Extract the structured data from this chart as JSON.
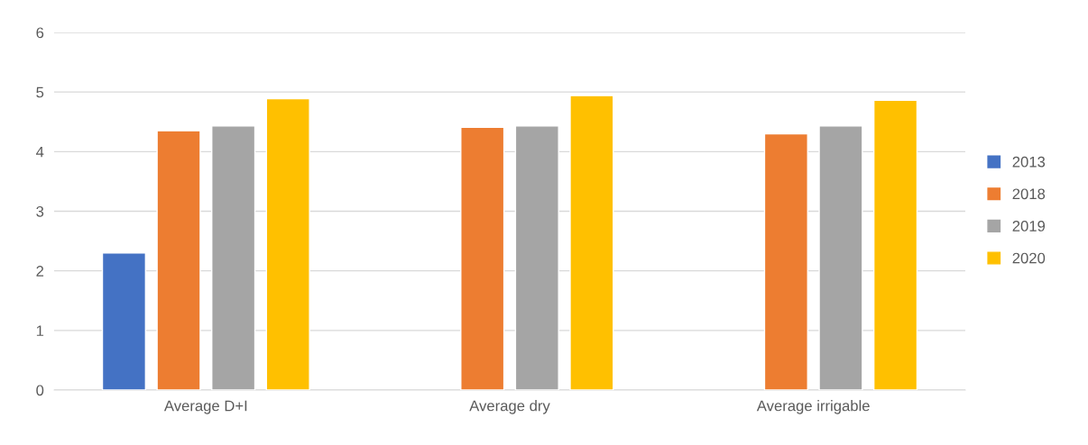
{
  "chart_data": {
    "type": "bar",
    "categories": [
      "Average D+I",
      "Average dry",
      "Average irrigable"
    ],
    "series": [
      {
        "name": "2013",
        "color": "#4472c4",
        "values": [
          2.3,
          null,
          null
        ]
      },
      {
        "name": "2018",
        "color": "#ed7d31",
        "values": [
          4.35,
          4.41,
          4.3
        ]
      },
      {
        "name": "2019",
        "color": "#a5a5a5",
        "values": [
          4.43,
          4.43,
          4.43
        ]
      },
      {
        "name": "2020",
        "color": "#ffc000",
        "values": [
          4.89,
          4.94,
          4.86
        ]
      }
    ],
    "ylim": [
      0,
      6
    ],
    "yticks": [
      0,
      1,
      2,
      3,
      4,
      5,
      6
    ],
    "grid": "y",
    "legend": "right"
  }
}
